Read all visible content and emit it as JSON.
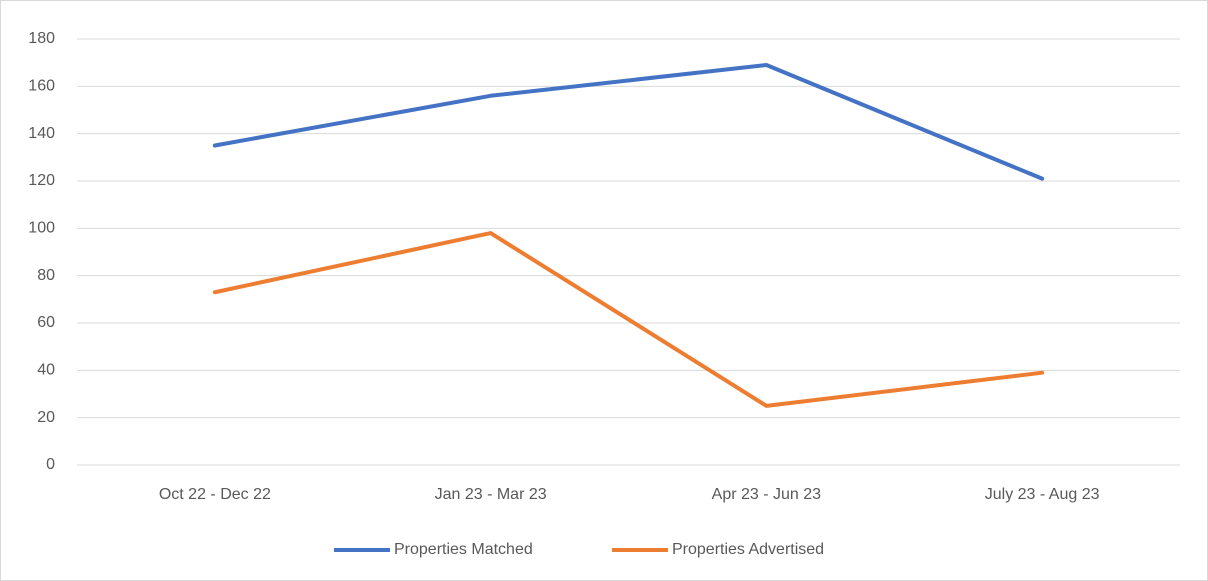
{
  "chart_data": {
    "type": "line",
    "categories": [
      "Oct 22 - Dec 22",
      "Jan 23 - Mar 23",
      "Apr 23 - Jun 23",
      "July 23 - Aug 23"
    ],
    "series": [
      {
        "name": "Properties Matched",
        "color": "#4472c4",
        "values": [
          135,
          156,
          169,
          121
        ]
      },
      {
        "name": "Properties Advertised",
        "color": "#ed7d31",
        "values": [
          73,
          98,
          25,
          39
        ]
      }
    ],
    "ylim": [
      0,
      180
    ],
    "yticks": [
      0,
      20,
      40,
      60,
      80,
      100,
      120,
      140,
      160,
      180
    ],
    "grid": true,
    "legend": "bottom"
  }
}
